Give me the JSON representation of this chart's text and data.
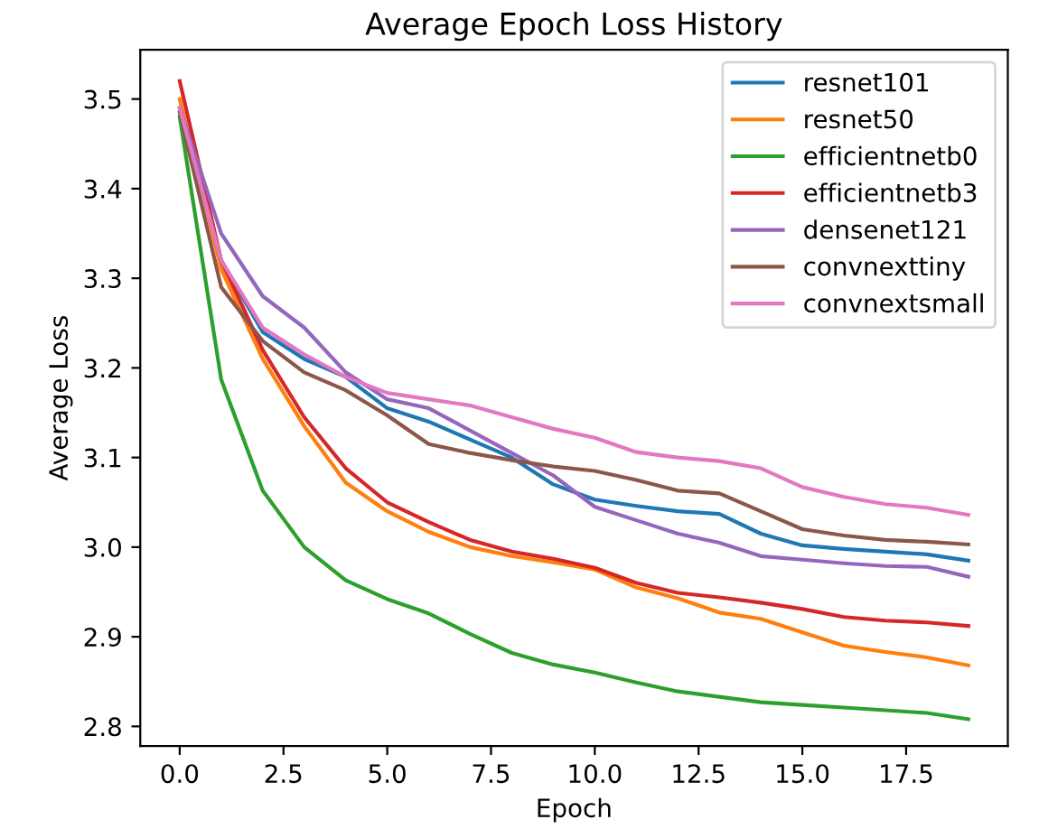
{
  "chart_data": {
    "type": "line",
    "title": "Average Epoch Loss History",
    "xlabel": "Epoch",
    "ylabel": "Average Loss",
    "x": [
      0,
      1,
      2,
      3,
      4,
      5,
      6,
      7,
      8,
      9,
      10,
      11,
      12,
      13,
      14,
      15,
      16,
      17,
      18,
      19
    ],
    "series": [
      {
        "name": "resnet101",
        "color": "#1f77b4",
        "values": [
          3.49,
          3.32,
          3.24,
          3.21,
          3.19,
          3.155,
          3.14,
          3.12,
          3.1,
          3.07,
          3.053,
          3.046,
          3.04,
          3.037,
          3.015,
          3.002,
          2.998,
          2.995,
          2.992,
          2.985
        ]
      },
      {
        "name": "resnet50",
        "color": "#ff7f0e",
        "values": [
          3.5,
          3.31,
          3.21,
          3.135,
          3.072,
          3.04,
          3.017,
          3.0,
          2.99,
          2.983,
          2.975,
          2.955,
          2.943,
          2.927,
          2.92,
          2.905,
          2.89,
          2.883,
          2.877,
          2.868
        ]
      },
      {
        "name": "efficientnetb0",
        "color": "#2ca02c",
        "values": [
          3.48,
          3.187,
          3.063,
          3.0,
          2.963,
          2.942,
          2.926,
          2.903,
          2.882,
          2.869,
          2.86,
          2.849,
          2.839,
          2.833,
          2.827,
          2.824,
          2.821,
          2.818,
          2.815,
          2.808
        ]
      },
      {
        "name": "efficientnetb3",
        "color": "#d62728",
        "values": [
          3.52,
          3.32,
          3.22,
          3.145,
          3.088,
          3.05,
          3.028,
          3.008,
          2.995,
          2.987,
          2.977,
          2.96,
          2.949,
          2.944,
          2.938,
          2.931,
          2.922,
          2.918,
          2.916,
          2.912
        ]
      },
      {
        "name": "densenet121",
        "color": "#9467bd",
        "values": [
          3.49,
          3.35,
          3.28,
          3.245,
          3.195,
          3.165,
          3.155,
          3.13,
          3.105,
          3.08,
          3.045,
          3.03,
          3.015,
          3.005,
          2.99,
          2.986,
          2.982,
          2.979,
          2.978,
          2.967
        ]
      },
      {
        "name": "convnexttiny",
        "color": "#8c564b",
        "values": [
          3.485,
          3.29,
          3.23,
          3.195,
          3.175,
          3.147,
          3.115,
          3.105,
          3.097,
          3.09,
          3.085,
          3.075,
          3.063,
          3.06,
          3.04,
          3.02,
          3.013,
          3.008,
          3.006,
          3.003
        ]
      },
      {
        "name": "convnextsmall",
        "color": "#e377c2",
        "values": [
          3.49,
          3.32,
          3.245,
          3.215,
          3.19,
          3.172,
          3.165,
          3.158,
          3.145,
          3.132,
          3.122,
          3.106,
          3.1,
          3.096,
          3.088,
          3.067,
          3.056,
          3.048,
          3.044,
          3.036
        ]
      }
    ],
    "xlim": [
      -0.95,
      19.95
    ],
    "xticks": [
      {
        "value": 0,
        "label": "0.0"
      },
      {
        "value": 2.5,
        "label": "2.5"
      },
      {
        "value": 5,
        "label": "5.0"
      },
      {
        "value": 7.5,
        "label": "7.5"
      },
      {
        "value": 10,
        "label": "10.0"
      },
      {
        "value": 12.5,
        "label": "12.5"
      },
      {
        "value": 15,
        "label": "15.0"
      },
      {
        "value": 17.5,
        "label": "17.5"
      }
    ],
    "ylim": [
      2.778,
      3.555
    ],
    "yticks": [
      2.8,
      2.9,
      {
        "value": 3,
        "label": "3.0"
      },
      3.1,
      3.2,
      3.3,
      3.4,
      3.5
    ],
    "legend": "top right",
    "grid": false
  }
}
